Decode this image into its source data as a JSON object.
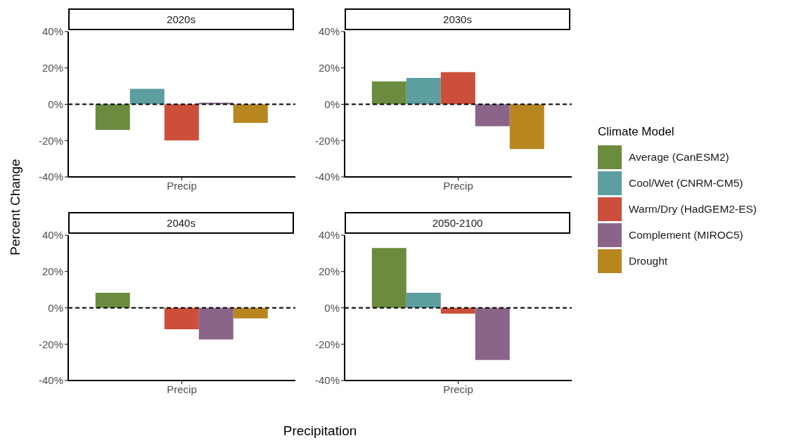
{
  "chart_data": [
    {
      "type": "bar",
      "title": "2020s",
      "ylabel": "Percent Change",
      "xlabel": "Precipitation",
      "legend_title": "Climate Model",
      "legend": "right",
      "categories": [
        "Precip"
      ],
      "ylim": [
        -40,
        40
      ],
      "yticks": [
        {
          "value": -40,
          "label": "-40%"
        },
        {
          "value": -20,
          "label": "-20%"
        },
        {
          "value": 0,
          "label": "0%"
        },
        {
          "value": 20,
          "label": "20%"
        },
        {
          "value": 40,
          "label": "40%"
        }
      ],
      "ref_lines": [
        {
          "axis": "y",
          "value": 0,
          "line_style": "dashed",
          "color": "#000000"
        }
      ],
      "series": [
        {
          "name": "Average (CanESM2)",
          "color": "#6b8c3e",
          "values": [
            -14.1
          ]
        },
        {
          "name": "Cool/Wet (CNRM-CM5)",
          "color": "#5d9ea0",
          "values": [
            8.5
          ]
        },
        {
          "name": "Warm/Dry (HadGEM2-ES)",
          "color": "#cc4f3b",
          "values": [
            -19.9
          ]
        },
        {
          "name": "Complement (MIROC5)",
          "color": "#8a6589",
          "values": [
            0.9
          ]
        },
        {
          "name": "Drought",
          "color": "#b8861f",
          "values": [
            -10.2
          ]
        }
      ]
    },
    {
      "type": "bar",
      "title": "2030s",
      "categories": [
        "Precip"
      ],
      "ylim": [
        -40,
        40
      ],
      "yticks": [
        {
          "value": -40,
          "label": "-40%"
        },
        {
          "value": -20,
          "label": "-20%"
        },
        {
          "value": 0,
          "label": "0%"
        },
        {
          "value": 20,
          "label": "20%"
        },
        {
          "value": 40,
          "label": "40%"
        }
      ],
      "ref_lines": [
        {
          "axis": "y",
          "value": 0,
          "line_style": "dashed",
          "color": "#000000"
        }
      ],
      "series": [
        {
          "color": "#6b8c3e",
          "values": [
            12.6
          ]
        },
        {
          "color": "#5d9ea0",
          "values": [
            14.5
          ]
        },
        {
          "color": "#cc4f3b",
          "values": [
            17.7
          ]
        },
        {
          "color": "#8a6589",
          "values": [
            -12.1
          ]
        },
        {
          "color": "#b8861f",
          "values": [
            -24.6
          ]
        }
      ]
    },
    {
      "type": "bar",
      "title": "2040s",
      "categories": [
        "Precip"
      ],
      "ylim": [
        -40,
        40
      ],
      "yticks": [
        {
          "value": -40,
          "label": "-40%"
        },
        {
          "value": -20,
          "label": "-20%"
        },
        {
          "value": 0,
          "label": "0%"
        },
        {
          "value": 20,
          "label": "20%"
        },
        {
          "value": 40,
          "label": "40%"
        }
      ],
      "ref_lines": [
        {
          "axis": "y",
          "value": 0,
          "line_style": "dashed",
          "color": "#000000"
        }
      ],
      "series": [
        {
          "color": "#6b8c3e",
          "values": [
            8.3
          ]
        },
        {
          "color": "#5d9ea0",
          "values": [
            0.2
          ]
        },
        {
          "color": "#cc4f3b",
          "values": [
            -11.8
          ]
        },
        {
          "color": "#8a6589",
          "values": [
            -17.4
          ]
        },
        {
          "color": "#b8861f",
          "values": [
            -5.8
          ]
        }
      ]
    },
    {
      "type": "bar",
      "title": "2050-2100",
      "categories": [
        "Precip"
      ],
      "ylim": [
        -40,
        40
      ],
      "yticks": [
        {
          "value": -40,
          "label": "-40%"
        },
        {
          "value": -20,
          "label": "-20%"
        },
        {
          "value": 0,
          "label": "0%"
        },
        {
          "value": 20,
          "label": "20%"
        },
        {
          "value": 40,
          "label": "40%"
        }
      ],
      "ref_lines": [
        {
          "axis": "y",
          "value": 0,
          "line_style": "dashed",
          "color": "#000000"
        }
      ],
      "series": [
        {
          "color": "#6b8c3e",
          "values": [
            32.9
          ]
        },
        {
          "color": "#5d9ea0",
          "values": [
            8.3
          ]
        },
        {
          "color": "#cc4f3b",
          "values": [
            -3.2
          ]
        },
        {
          "color": "#8a6589",
          "values": [
            -28.7
          ]
        },
        {
          "color": "#b8861f",
          "values": [
            null
          ]
        }
      ]
    }
  ]
}
